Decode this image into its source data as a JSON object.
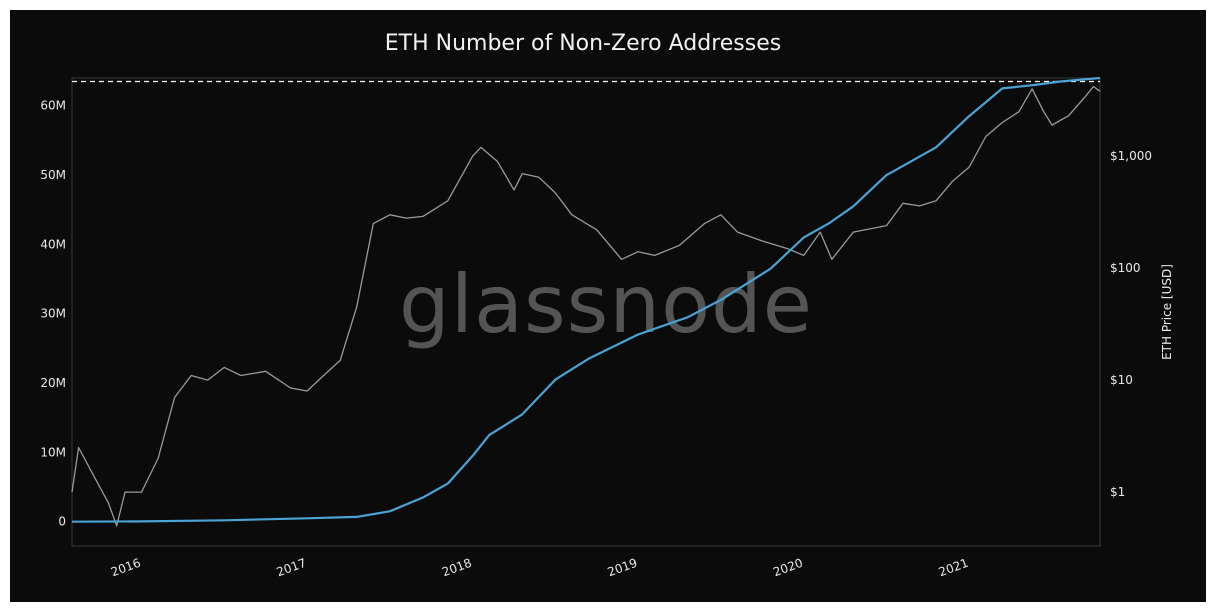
{
  "chart_data": {
    "type": "line",
    "title": "ETH Number of Non-Zero Addresses",
    "xlabel": "",
    "ylabel_left": "",
    "ylabel_right": "ETH Price [USD]",
    "watermark": "glassnode",
    "x_ticks": [
      "2016",
      "2017",
      "2018",
      "2019",
      "2020",
      "2021"
    ],
    "y_left_ticks": [
      "0",
      "10M",
      "20M",
      "30M",
      "40M",
      "50M",
      "60M"
    ],
    "y_right_ticks": [
      "$1",
      "$10",
      "$100",
      "$1,000"
    ],
    "x_range": [
      2015.58,
      2021.79
    ],
    "y_left_range": [
      -3500000,
      64000000
    ],
    "y_right_range_log": [
      0.33,
      5000
    ],
    "reference_line_value": 63500000,
    "series": [
      {
        "axis": "left",
        "color": "#4aa3d4",
        "scale": "linear",
        "points": [
          [
            2015.58,
            0
          ],
          [
            2016.0,
            50000
          ],
          [
            2016.5,
            200000
          ],
          [
            2017.0,
            500000
          ],
          [
            2017.3,
            700000
          ],
          [
            2017.5,
            1500000
          ],
          [
            2017.7,
            3500000
          ],
          [
            2017.85,
            5500000
          ],
          [
            2018.0,
            9500000
          ],
          [
            2018.1,
            12500000
          ],
          [
            2018.3,
            15500000
          ],
          [
            2018.5,
            20500000
          ],
          [
            2018.7,
            23500000
          ],
          [
            2019.0,
            27000000
          ],
          [
            2019.3,
            29500000
          ],
          [
            2019.5,
            32000000
          ],
          [
            2019.8,
            36500000
          ],
          [
            2020.0,
            41000000
          ],
          [
            2020.15,
            43000000
          ],
          [
            2020.3,
            45500000
          ],
          [
            2020.5,
            50000000
          ],
          [
            2020.8,
            54000000
          ],
          [
            2021.0,
            58500000
          ],
          [
            2021.2,
            62500000
          ],
          [
            2021.4,
            63000000
          ],
          [
            2021.55,
            63500000
          ],
          [
            2021.79,
            64000000
          ]
        ]
      },
      {
        "axis": "right",
        "color": "#9a9a9a",
        "scale": "log",
        "points": [
          [
            2015.58,
            1.0
          ],
          [
            2015.62,
            2.5
          ],
          [
            2015.7,
            1.5
          ],
          [
            2015.8,
            0.8
          ],
          [
            2015.85,
            0.5
          ],
          [
            2015.9,
            1.0
          ],
          [
            2016.0,
            1.0
          ],
          [
            2016.1,
            2.0
          ],
          [
            2016.2,
            7.0
          ],
          [
            2016.3,
            11.0
          ],
          [
            2016.4,
            10.0
          ],
          [
            2016.5,
            13.0
          ],
          [
            2016.6,
            11.0
          ],
          [
            2016.75,
            12.0
          ],
          [
            2016.9,
            8.5
          ],
          [
            2017.0,
            8.0
          ],
          [
            2017.1,
            11.0
          ],
          [
            2017.2,
            15.0
          ],
          [
            2017.3,
            45.0
          ],
          [
            2017.4,
            250.0
          ],
          [
            2017.5,
            300.0
          ],
          [
            2017.6,
            280.0
          ],
          [
            2017.7,
            290.0
          ],
          [
            2017.85,
            400.0
          ],
          [
            2018.0,
            1000.0
          ],
          [
            2018.05,
            1200.0
          ],
          [
            2018.15,
            900.0
          ],
          [
            2018.25,
            500.0
          ],
          [
            2018.3,
            700.0
          ],
          [
            2018.4,
            650.0
          ],
          [
            2018.5,
            470.0
          ],
          [
            2018.6,
            300.0
          ],
          [
            2018.75,
            220.0
          ],
          [
            2018.9,
            120.0
          ],
          [
            2019.0,
            140.0
          ],
          [
            2019.1,
            130.0
          ],
          [
            2019.25,
            160.0
          ],
          [
            2019.4,
            250.0
          ],
          [
            2019.5,
            300.0
          ],
          [
            2019.6,
            210.0
          ],
          [
            2019.75,
            175.0
          ],
          [
            2019.9,
            150.0
          ],
          [
            2020.0,
            130.0
          ],
          [
            2020.1,
            210.0
          ],
          [
            2020.17,
            120.0
          ],
          [
            2020.3,
            210.0
          ],
          [
            2020.5,
            240.0
          ],
          [
            2020.6,
            380.0
          ],
          [
            2020.7,
            360.0
          ],
          [
            2020.8,
            400.0
          ],
          [
            2020.9,
            600.0
          ],
          [
            2021.0,
            800.0
          ],
          [
            2021.1,
            1500.0
          ],
          [
            2021.2,
            2000.0
          ],
          [
            2021.3,
            2500.0
          ],
          [
            2021.38,
            4000.0
          ],
          [
            2021.45,
            2500.0
          ],
          [
            2021.5,
            1900.0
          ],
          [
            2021.6,
            2300.0
          ],
          [
            2021.7,
            3400.0
          ],
          [
            2021.75,
            4200.0
          ],
          [
            2021.79,
            3800.0
          ]
        ]
      }
    ]
  }
}
